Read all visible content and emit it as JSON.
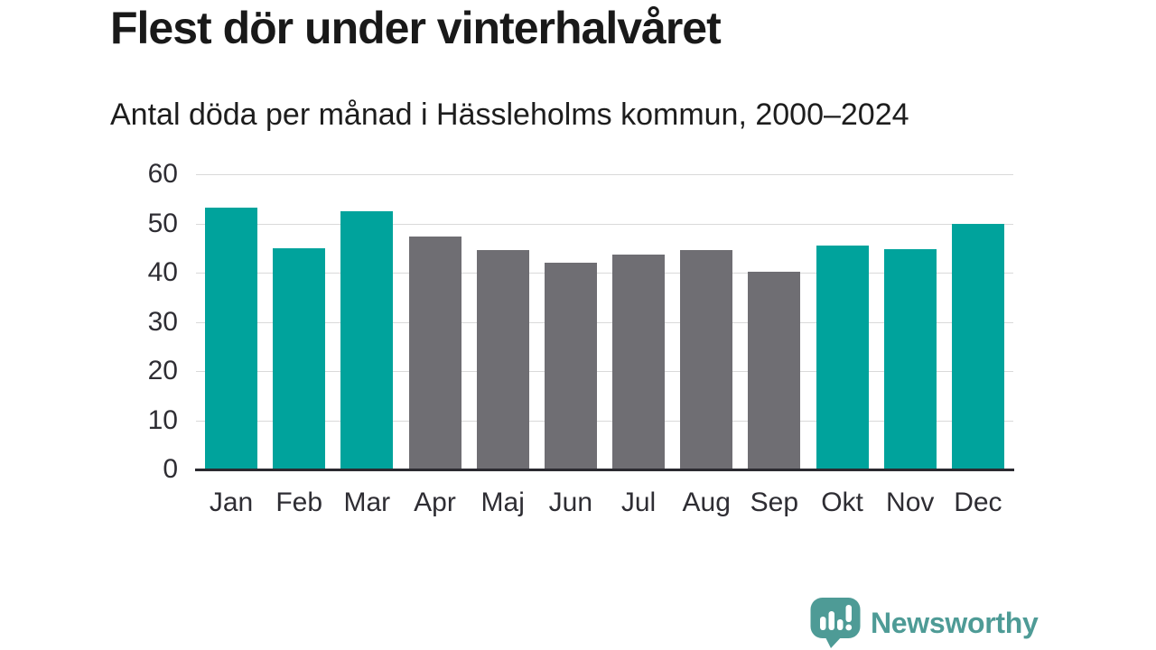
{
  "header": {
    "title": "Flest dör under vinterhalvåret",
    "subtitle": "Antal döda per månad i Hässleholms kommun, 2000–2024"
  },
  "chart_data": {
    "type": "bar",
    "title": "Flest dör under vinterhalvåret",
    "subtitle": "Antal döda per månad i Hässleholms kommun, 2000–2024",
    "categories": [
      "Jan",
      "Feb",
      "Mar",
      "Apr",
      "Maj",
      "Jun",
      "Jul",
      "Aug",
      "Sep",
      "Okt",
      "Nov",
      "Dec"
    ],
    "values": [
      53.2,
      44.9,
      52.5,
      47.4,
      44.6,
      42.0,
      43.6,
      44.5,
      40.1,
      45.5,
      44.7,
      50.0
    ],
    "highlighted_categories": [
      "Jan",
      "Feb",
      "Mar",
      "Okt",
      "Nov",
      "Dec"
    ],
    "highlight_color": "#00a39c",
    "base_color": "#6f6e73",
    "xlabel": "",
    "ylabel": "",
    "ylim": [
      0,
      60
    ],
    "yticks": [
      0,
      10,
      20,
      30,
      40,
      50,
      60
    ],
    "grid": true,
    "gridline_color": "#d9d9d9",
    "axis_line_color": "#2b2a30",
    "legend": false
  },
  "footer": {
    "brand": "Newsworthy",
    "logo_icon": "bar-chart-speech-bubble-icon",
    "brand_color": "#4e9b96"
  }
}
